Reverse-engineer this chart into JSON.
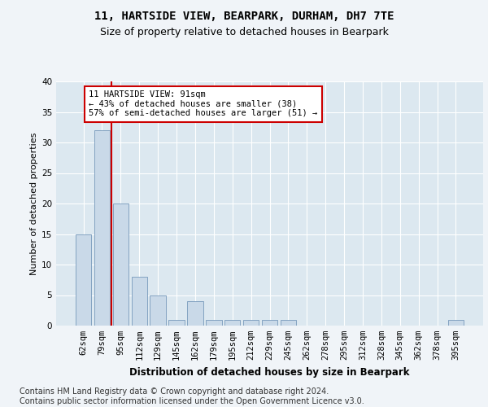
{
  "title1": "11, HARTSIDE VIEW, BEARPARK, DURHAM, DH7 7TE",
  "title2": "Size of property relative to detached houses in Bearpark",
  "xlabel": "Distribution of detached houses by size in Bearpark",
  "ylabel": "Number of detached properties",
  "categories": [
    "62sqm",
    "79sqm",
    "95sqm",
    "112sqm",
    "129sqm",
    "145sqm",
    "162sqm",
    "179sqm",
    "195sqm",
    "212sqm",
    "229sqm",
    "245sqm",
    "262sqm",
    "278sqm",
    "295sqm",
    "312sqm",
    "328sqm",
    "345sqm",
    "362sqm",
    "378sqm",
    "395sqm"
  ],
  "values": [
    15,
    32,
    20,
    8,
    5,
    1,
    4,
    1,
    1,
    1,
    1,
    1,
    0,
    0,
    0,
    0,
    0,
    0,
    0,
    0,
    1
  ],
  "bar_color": "#c9d9e8",
  "bar_edge_color": "#7799bb",
  "vline_x_index": 1,
  "vline_color": "#cc0000",
  "annotation_box_text": "11 HARTSIDE VIEW: 91sqm\n← 43% of detached houses are smaller (38)\n57% of semi-detached houses are larger (51) →",
  "annotation_box_color": "#cc0000",
  "ylim": [
    0,
    40
  ],
  "yticks": [
    0,
    5,
    10,
    15,
    20,
    25,
    30,
    35,
    40
  ],
  "footnote": "Contains HM Land Registry data © Crown copyright and database right 2024.\nContains public sector information licensed under the Open Government Licence v3.0.",
  "bg_color": "#f0f4f8",
  "plot_bg_color": "#dce8f0",
  "grid_color": "#ffffff",
  "title1_fontsize": 10,
  "title2_fontsize": 9,
  "xlabel_fontsize": 8.5,
  "ylabel_fontsize": 8,
  "footnote_fontsize": 7,
  "tick_fontsize": 7.5,
  "ann_fontsize": 7.5
}
